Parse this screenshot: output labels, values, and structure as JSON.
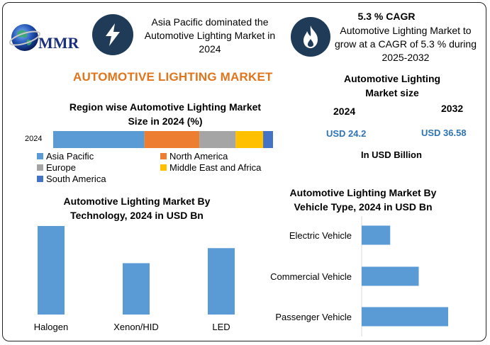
{
  "logo": {
    "text": "MMR"
  },
  "header": {
    "left_text": "Asia Pacific dominated the Automotive Lighting Market in 2024",
    "right_title": "5.3 % CAGR",
    "right_text": "Automotive Lighting Market to grow at a CAGR of 5.3 % during 2025-2032"
  },
  "main_title": "AUTOMOTIVE LIGHTING MARKET",
  "market_size": {
    "title": "Automotive Lighting Market size",
    "year_a": "2024",
    "year_b": "2032",
    "value_a": "USD 24.2",
    "value_b": "USD 36.58",
    "unit": "In USD Billion"
  },
  "colors": {
    "asia_pacific": "#5b9bd5",
    "north_america": "#ed7d31",
    "europe": "#a5a5a5",
    "mea": "#ffc000",
    "south_america": "#4472c4",
    "bar": "#5b9bd5"
  },
  "chart_data": [
    {
      "type": "bar",
      "orientation": "horizontal-stacked",
      "title": "Region wise Automotive Lighting Market Size in 2024 (%)",
      "categories": [
        "2024"
      ],
      "series": [
        {
          "name": "Asia Pacific",
          "values": [
            41.5
          ]
        },
        {
          "name": "North America",
          "values": [
            25
          ]
        },
        {
          "name": "Europe",
          "values": [
            16.5
          ]
        },
        {
          "name": "Middle East and Africa",
          "values": [
            12.5
          ]
        },
        {
          "name": "South America",
          "values": [
            4.5
          ]
        }
      ],
      "legend": "bottom",
      "xlim": [
        0,
        100
      ]
    },
    {
      "type": "bar",
      "title": "Automotive Lighting Market By Technology, 2024 in USD Bn",
      "categories": [
        "Halogen",
        "Xenon/HID",
        "LED"
      ],
      "values": [
        10,
        5.8,
        7.5
      ],
      "ylim": [
        0,
        10
      ],
      "grid": false
    },
    {
      "type": "bar",
      "orientation": "horizontal",
      "title": "Automotive Lighting Market By Vehicle Type, 2024 in USD Bn",
      "categories": [
        "Electric Vehicle",
        "Commercial Vehicle",
        "Passenger Vehicle"
      ],
      "values": [
        3.3,
        6.6,
        10
      ],
      "xlim": [
        0,
        10
      ],
      "grid": false
    }
  ]
}
